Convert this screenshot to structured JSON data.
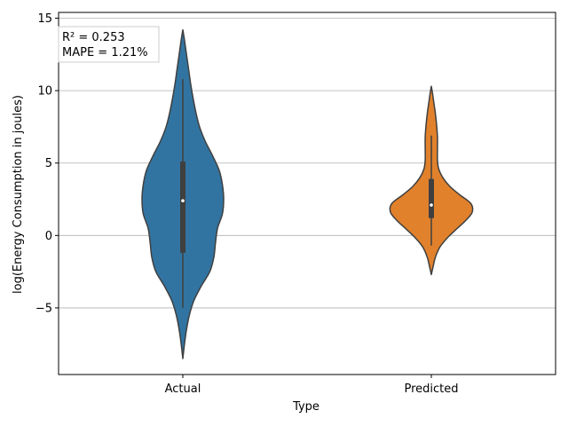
{
  "chart_data": {
    "type": "violin",
    "xlabel": "Type",
    "ylabel": "log(Energy Consumption in joules)",
    "categories": [
      "Actual",
      "Predicted"
    ],
    "ylim": [
      -9.6,
      15.4
    ],
    "yticks": [
      -5,
      0,
      5,
      10,
      15
    ],
    "ytick_labels": [
      "−5",
      "0",
      "5",
      "10",
      "15"
    ],
    "grid": "horizontal",
    "annotation": {
      "lines": [
        "R² = 0.253",
        "MAPE = 1.21%"
      ],
      "placement": "top-left"
    },
    "series": [
      {
        "category": "Actual",
        "color": "#3274a1",
        "density": [
          [
            -8.5,
            0.0
          ],
          [
            -7.5,
            0.04
          ],
          [
            -6.5,
            0.09
          ],
          [
            -5.5,
            0.16
          ],
          [
            -4.5,
            0.27
          ],
          [
            -3.5,
            0.45
          ],
          [
            -2.5,
            0.66
          ],
          [
            -1.5,
            0.76
          ],
          [
            -0.5,
            0.8
          ],
          [
            0.5,
            0.85
          ],
          [
            1.5,
            0.97
          ],
          [
            2.5,
            1.0
          ],
          [
            3.5,
            0.97
          ],
          [
            4.5,
            0.89
          ],
          [
            5.5,
            0.73
          ],
          [
            6.5,
            0.55
          ],
          [
            7.5,
            0.41
          ],
          [
            8.5,
            0.32
          ],
          [
            9.5,
            0.25
          ],
          [
            10.5,
            0.19
          ],
          [
            11.5,
            0.14
          ],
          [
            12.5,
            0.09
          ],
          [
            13.5,
            0.04
          ],
          [
            14.2,
            0.0
          ]
        ],
        "whisker": [
          -5.0,
          10.8
        ],
        "q1": -1.2,
        "q3": 5.1,
        "median": 2.4
      },
      {
        "category": "Predicted",
        "color": "#e1812c",
        "density": [
          [
            -2.7,
            0.0
          ],
          [
            -2.2,
            0.04
          ],
          [
            -1.5,
            0.1
          ],
          [
            -0.8,
            0.21
          ],
          [
            -0.2,
            0.38
          ],
          [
            0.4,
            0.6
          ],
          [
            1.0,
            0.83
          ],
          [
            1.6,
            1.0
          ],
          [
            2.2,
            0.97
          ],
          [
            2.8,
            0.7
          ],
          [
            3.4,
            0.45
          ],
          [
            4.0,
            0.28
          ],
          [
            4.6,
            0.18
          ],
          [
            5.2,
            0.15
          ],
          [
            6.0,
            0.15
          ],
          [
            6.8,
            0.15
          ],
          [
            7.6,
            0.13
          ],
          [
            8.4,
            0.1
          ],
          [
            9.2,
            0.06
          ],
          [
            9.8,
            0.03
          ],
          [
            10.3,
            0.0
          ]
        ],
        "whisker": [
          -0.7,
          6.9
        ],
        "q1": 1.2,
        "q3": 3.9,
        "median": 2.1
      }
    ]
  }
}
